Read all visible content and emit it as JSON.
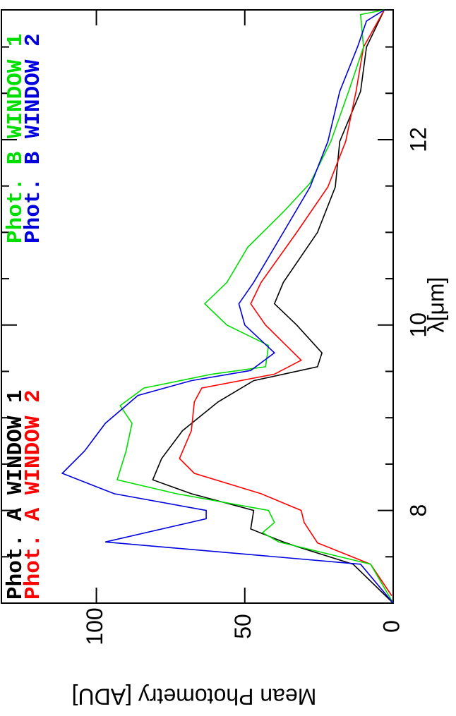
{
  "chart_data": {
    "type": "line",
    "x_label": "λ[μm]",
    "y_label": "Mean Photometry [ADU]",
    "xlim": [
      7,
      13.4
    ],
    "ylim": [
      0,
      132
    ],
    "xticks": [
      8,
      10,
      12
    ],
    "xminor_ticks": [
      7.5,
      8.5,
      9,
      9.5,
      10.5,
      11,
      11.5,
      12.5,
      13
    ],
    "yticks": [
      0,
      50,
      100
    ],
    "series": [
      {
        "name": "Phot. A WINDOW 1",
        "color": "#000000",
        "x": [
          7.0,
          7.42,
          7.61,
          7.66,
          7.8,
          8.0,
          8.18,
          8.33,
          8.56,
          8.86,
          9.17,
          9.4,
          9.55,
          9.7,
          10.0,
          10.23,
          10.46,
          11.0,
          11.49,
          11.98,
          12.52,
          13.0,
          13.4
        ],
        "values": [
          0,
          13.5,
          32.5,
          37,
          48,
          47,
          68,
          81,
          78,
          71,
          59,
          47,
          25.5,
          24,
          32.5,
          40,
          37,
          25.5,
          19.5,
          18,
          11,
          9,
          3
        ]
      },
      {
        "name": "Phot. A WINDOW 2",
        "color": "#ff0000",
        "x": [
          7.08,
          7.42,
          7.65,
          7.87,
          8.0,
          8.18,
          8.4,
          8.56,
          8.86,
          9.17,
          9.32,
          9.47,
          9.62,
          10.0,
          10.23,
          10.46,
          11.0,
          11.49,
          11.98,
          12.52,
          13.0,
          13.4
        ],
        "values": [
          0.5,
          7.6,
          25.5,
          30,
          31,
          44.5,
          67,
          72,
          68,
          67,
          64.5,
          40,
          31,
          43,
          48,
          44.5,
          32.5,
          22,
          16,
          12.5,
          10,
          3
        ]
      },
      {
        "name": "Phot. B WINDOW 1",
        "color": "#00dd00",
        "x": [
          7.0,
          7.42,
          7.66,
          7.76,
          7.87,
          8.0,
          8.18,
          8.33,
          8.64,
          8.94,
          9.13,
          9.32,
          9.47,
          9.55,
          9.78,
          10.0,
          10.23,
          10.46,
          10.84,
          11.22,
          11.53,
          11.98,
          12.52,
          13.0,
          13.35,
          13.4
        ],
        "values": [
          0,
          7.6,
          38.5,
          44,
          40,
          42,
          73,
          93,
          90,
          88,
          92,
          84,
          61,
          43,
          42,
          56,
          63.5,
          56,
          49,
          37,
          28,
          21,
          15,
          10,
          11,
          3
        ]
      },
      {
        "name": "Phot. B WINDOW 2",
        "color": "#0000dd",
        "x": [
          7.0,
          7.42,
          7.66,
          7.91,
          8.0,
          8.18,
          8.4,
          8.64,
          8.94,
          9.24,
          9.4,
          9.51,
          9.7,
          10.0,
          10.23,
          10.46,
          11.0,
          11.49,
          11.98,
          12.52,
          13.0,
          13.28,
          13.4
        ],
        "values": [
          0,
          11,
          97,
          63,
          63,
          94,
          111.5,
          104,
          97,
          86,
          68,
          48,
          40,
          50,
          52,
          47,
          37,
          28,
          22,
          18,
          12,
          9,
          3
        ]
      }
    ]
  }
}
